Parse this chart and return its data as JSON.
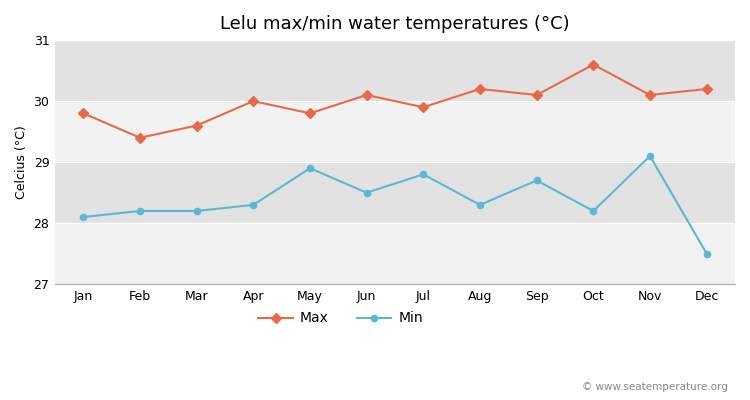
{
  "title": "Lelu max/min water temperatures (°C)",
  "ylabel": "Celcius (°C)",
  "months": [
    "Jan",
    "Feb",
    "Mar",
    "Apr",
    "May",
    "Jun",
    "Jul",
    "Aug",
    "Sep",
    "Oct",
    "Nov",
    "Dec"
  ],
  "max_values": [
    29.8,
    29.4,
    29.6,
    30.0,
    29.8,
    30.1,
    29.9,
    30.2,
    30.1,
    30.6,
    30.1,
    30.2
  ],
  "min_values": [
    28.1,
    28.2,
    28.2,
    28.3,
    28.9,
    28.5,
    28.8,
    28.3,
    28.7,
    28.2,
    29.1,
    27.5
  ],
  "max_color": "#e8694a",
  "min_color": "#5ab8d4",
  "ylim": [
    27.0,
    31.0
  ],
  "yticks": [
    27,
    28,
    29,
    30,
    31
  ],
  "fig_background": "#ffffff",
  "plot_background": "#ffffff",
  "band_dark": "#e2e2e2",
  "band_light": "#f2f2f2",
  "title_fontsize": 13,
  "axis_fontsize": 9,
  "tick_fontsize": 9,
  "watermark": "© www.seatemperature.org",
  "legend_labels": [
    "Max",
    "Min"
  ]
}
